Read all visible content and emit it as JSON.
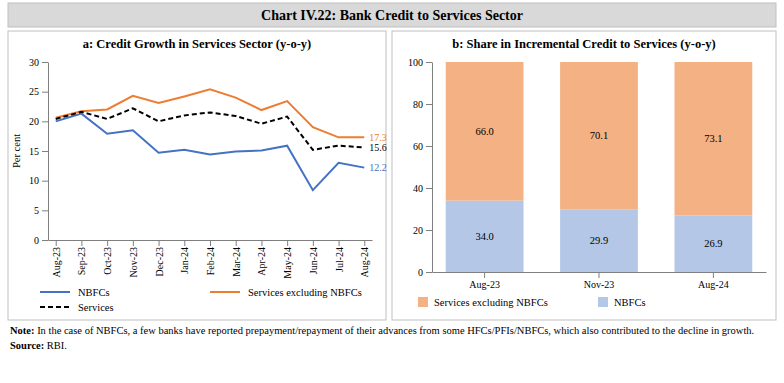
{
  "title": "Chart IV.22: Bank Credit to Services Sector",
  "chart_data": [
    {
      "type": "line",
      "title": "a: Credit Growth in Services Sector (y-o-y)",
      "y_label": "Per cent",
      "categories": [
        "Aug-23",
        "Sep-23",
        "Oct-23",
        "Nov-23",
        "Dec-23",
        "Jan-24",
        "Feb-24",
        "Mar-24",
        "Apr-24",
        "May-24",
        "Jun-24",
        "Jul-24",
        "Aug-24"
      ],
      "series": [
        {
          "name": "NBFCs",
          "color": "#4472c4",
          "line_style": "solid",
          "values": [
            20.0,
            21.3,
            17.9,
            18.5,
            14.7,
            15.2,
            14.4,
            14.9,
            15.1,
            15.9,
            8.4,
            13.0,
            12.2
          ]
        },
        {
          "name": "Services excluding NBFCs",
          "color": "#ed7d31",
          "line_style": "solid",
          "values": [
            20.6,
            21.7,
            22.0,
            24.3,
            23.1,
            24.2,
            25.4,
            24.0,
            21.9,
            23.4,
            19.0,
            17.3,
            17.3
          ]
        },
        {
          "name": "Services",
          "color": "#000000",
          "line_style": "dashed",
          "values": [
            20.4,
            21.6,
            20.4,
            22.2,
            20.0,
            21.0,
            21.5,
            20.9,
            19.6,
            20.8,
            15.2,
            15.9,
            15.6
          ]
        }
      ],
      "annotations": [
        {
          "text": "17.3",
          "x": "Aug-24",
          "y": 17.3,
          "color": "#ed7d31"
        },
        {
          "text": "15.6",
          "x": "Aug-24",
          "y": 15.6,
          "color": "#000000"
        },
        {
          "text": "12.2",
          "x": "Aug-24",
          "y": 12.2,
          "color": "#4472c4"
        }
      ],
      "ylim": [
        0,
        30
      ],
      "yticks": [
        0,
        5,
        10,
        15,
        20,
        25,
        30
      ],
      "grid": false,
      "legend": "bottom"
    },
    {
      "type": "bar",
      "title": "b: Share in Incremental Credit to Services (y-o-y)",
      "categories": [
        "Aug-23",
        "Nov-23",
        "Aug-24"
      ],
      "series": [
        {
          "name": "NBFCs",
          "color": "#b4c7e7",
          "values": [
            34.0,
            29.9,
            26.9
          ],
          "value_labels": [
            "34.0",
            "29.9",
            "26.9"
          ]
        },
        {
          "name": "Services excluding NBFCs",
          "color": "#f4b183",
          "values": [
            66.0,
            70.1,
            73.1
          ],
          "value_labels": [
            "66.0",
            "70.1",
            "73.1"
          ]
        }
      ],
      "stacked": true,
      "data_labels": true,
      "ylim": [
        0,
        100
      ],
      "yticks": [
        0,
        20,
        40,
        60,
        80,
        100
      ],
      "grid": false,
      "legend": "bottom"
    }
  ],
  "note": {
    "label": "Note:",
    "text": "In the case of NBFCs, a few banks have reported prepayment/repayment of their advances from some HFCs/PFIs/NBFCs, which also contributed to the decline in growth."
  },
  "source": {
    "label": "Source:",
    "text": "RBI."
  }
}
